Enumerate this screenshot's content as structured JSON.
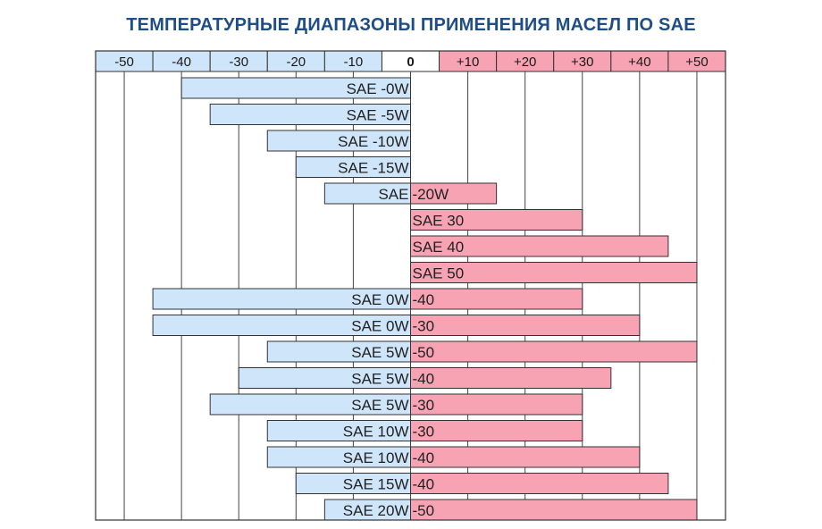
{
  "title": "ТЕМПЕРАТУРНЫЕ ДИАПАЗОНЫ ПРИМЕНЕНИЯ МАСЕЛ ПО SAE",
  "colors": {
    "title": "#1f4e86",
    "cold_fill": "#cfe6fa",
    "hot_fill": "#f8a3b4",
    "border": "#333333",
    "grid": "#444444",
    "zero_cell": "#ffffff"
  },
  "chart_data": {
    "type": "bar",
    "orientation": "horizontal-range",
    "title": "ТЕМПЕРАТУРНЫЕ ДИАПАЗОНЫ ПРИМЕНЕНИЯ МАСЕЛ ПО SAE",
    "x_ticks": [
      "-50",
      "-40",
      "-30",
      "-20",
      "-10",
      "0",
      "+10",
      "+20",
      "+30",
      "+40",
      "+50"
    ],
    "xlim": [
      -55,
      55
    ],
    "grid": true,
    "bars": [
      {
        "left_label": "SAE -0W",
        "right_label": "",
        "min": -40,
        "max": 0
      },
      {
        "left_label": "SAE -5W",
        "right_label": "",
        "min": -35,
        "max": 0
      },
      {
        "left_label": "SAE -10W",
        "right_label": "",
        "min": -25,
        "max": 0
      },
      {
        "left_label": "SAE -15W",
        "right_label": "",
        "min": -20,
        "max": 0
      },
      {
        "left_label": "SAE",
        "right_label": "-20W",
        "min": -15,
        "max": 15
      },
      {
        "left_label": "",
        "right_label": "SAE 30",
        "min": 0,
        "max": 30
      },
      {
        "left_label": "",
        "right_label": "SAE 40",
        "min": 0,
        "max": 45
      },
      {
        "left_label": "",
        "right_label": "SAE 50",
        "min": 0,
        "max": 50
      },
      {
        "left_label": "SAE 0W",
        "right_label": "-40",
        "min": -45,
        "max": 30
      },
      {
        "left_label": "SAE 0W",
        "right_label": "-30",
        "min": -45,
        "max": 40
      },
      {
        "left_label": "SAE 5W",
        "right_label": "-50",
        "min": -25,
        "max": 50
      },
      {
        "left_label": "SAE 5W",
        "right_label": "-40",
        "min": -30,
        "max": 35
      },
      {
        "left_label": "SAE 5W",
        "right_label": "-30",
        "min": -35,
        "max": 30
      },
      {
        "left_label": "SAE 10W",
        "right_label": "-30",
        "min": -25,
        "max": 30
      },
      {
        "left_label": "SAE 10W",
        "right_label": "-40",
        "min": -25,
        "max": 40
      },
      {
        "left_label": "SAE 15W",
        "right_label": "-40",
        "min": -20,
        "max": 45
      },
      {
        "left_label": "SAE 20W",
        "right_label": "-50",
        "min": -15,
        "max": 50
      }
    ]
  }
}
